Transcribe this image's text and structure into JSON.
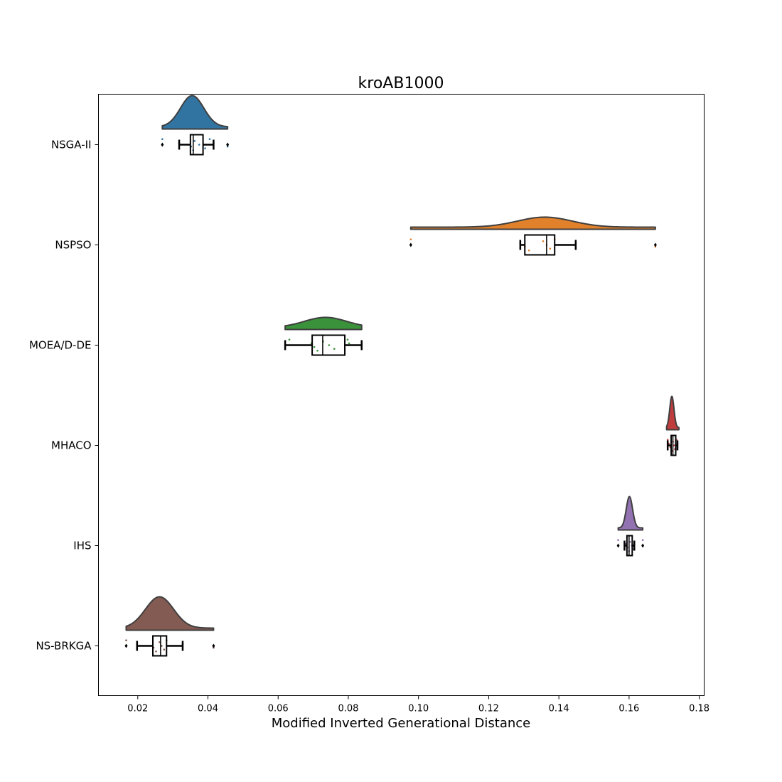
{
  "chart_data": {
    "type": "raincloud",
    "title": "kroAB1000",
    "xlabel": "Modified Inverted Generational Distance",
    "ylabel": "",
    "xlim": [
      0.0088,
      0.1814
    ],
    "xticks": [
      0.02,
      0.04,
      0.06,
      0.08,
      0.1,
      0.12,
      0.14,
      0.16,
      0.18
    ],
    "xtick_labels": [
      "0.02",
      "0.04",
      "0.06",
      "0.08",
      "0.10",
      "0.12",
      "0.14",
      "0.16",
      "0.18"
    ],
    "grid": false,
    "series": [
      {
        "name": "NSGA-II",
        "color": "#3274a1",
        "box": {
          "whislo": 0.0318,
          "q1": 0.035,
          "med": 0.0358,
          "q3": 0.0386,
          "whishi": 0.0416
        },
        "fliers": [
          0.027,
          0.0456
        ],
        "kde_range": [
          0.027,
          0.0456
        ],
        "kde_peaks": [
          {
            "mu": 0.0355,
            "sigma": 0.0033,
            "w": 1.0
          }
        ],
        "points": [
          0.027,
          0.0318,
          0.0352,
          0.0358,
          0.0362,
          0.0375,
          0.0392,
          0.0405,
          0.0416,
          0.0456
        ]
      },
      {
        "name": "NSPSO",
        "color": "#e1812c",
        "box": {
          "whislo": 0.129,
          "q1": 0.1303,
          "med": 0.1365,
          "q3": 0.1388,
          "whishi": 0.1448
        },
        "fliers": [
          0.0978,
          0.1675
        ],
        "kde_range": [
          0.0978,
          0.1675
        ],
        "kde_peaks": [
          {
            "mu": 0.136,
            "sigma": 0.0078,
            "w": 1.0
          }
        ],
        "points": [
          0.0978,
          0.129,
          0.1303,
          0.1315,
          0.1355,
          0.1365,
          0.1375,
          0.1388,
          0.1448,
          0.1675
        ]
      },
      {
        "name": "MOEA/D-DE",
        "color": "#3a923a",
        "box": {
          "whislo": 0.062,
          "q1": 0.0697,
          "med": 0.0727,
          "q3": 0.079,
          "whishi": 0.0838
        },
        "fliers": [],
        "kde_range": [
          0.062,
          0.0838
        ],
        "kde_peaks": [
          {
            "mu": 0.0735,
            "sigma": 0.006,
            "w": 1.0
          }
        ],
        "points": [
          0.0632,
          0.0695,
          0.0703,
          0.0712,
          0.0728,
          0.0745,
          0.076,
          0.0798,
          0.0802,
          0.0838
        ]
      },
      {
        "name": "MHACO",
        "color": "#c03d3e",
        "box": {
          "whislo": 0.171,
          "q1": 0.172,
          "med": 0.1725,
          "q3": 0.1733,
          "whishi": 0.1738
        },
        "fliers": [],
        "kde_range": [
          0.1707,
          0.1742
        ],
        "kde_peaks": [
          {
            "mu": 0.1722,
            "sigma": 0.0006,
            "w": 1.0
          }
        ],
        "points": [
          0.171,
          0.1713,
          0.1718,
          0.1722,
          0.1725,
          0.1728,
          0.1731,
          0.1735,
          0.1738
        ]
      },
      {
        "name": "IHS",
        "color": "#9372b2",
        "box": {
          "whislo": 0.1587,
          "q1": 0.1594,
          "med": 0.16,
          "q3": 0.1609,
          "whishi": 0.1615
        },
        "fliers": [
          0.1569,
          0.1639
        ],
        "kde_range": [
          0.1569,
          0.1639
        ],
        "kde_peaks": [
          {
            "mu": 0.1601,
            "sigma": 0.0009,
            "w": 1.0
          }
        ],
        "points": [
          0.1569,
          0.159,
          0.1595,
          0.16,
          0.1603,
          0.1608,
          0.1612,
          0.1639
        ]
      },
      {
        "name": "NS-BRKGA",
        "color": "#845b53",
        "box": {
          "whislo": 0.0198,
          "q1": 0.0243,
          "med": 0.0265,
          "q3": 0.0282,
          "whishi": 0.0328
        },
        "fliers": [
          0.0167,
          0.0416
        ],
        "kde_range": [
          0.0167,
          0.0416
        ],
        "kde_peaks": [
          {
            "mu": 0.0262,
            "sigma": 0.004,
            "w": 1.0
          }
        ],
        "points": [
          0.0167,
          0.0198,
          0.0245,
          0.0252,
          0.0262,
          0.0268,
          0.0275,
          0.0282,
          0.0328,
          0.0416
        ]
      }
    ]
  }
}
